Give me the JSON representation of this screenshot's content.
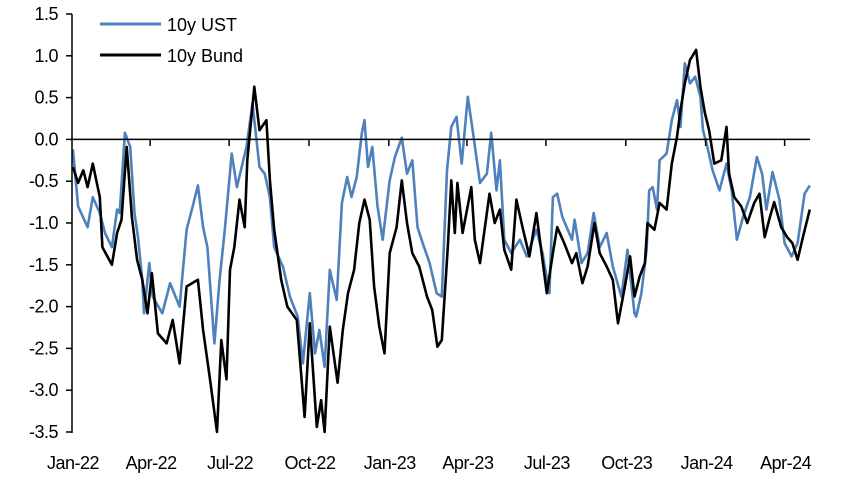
{
  "chart_data": {
    "type": "line",
    "title": "",
    "xlabel": "",
    "ylabel": "",
    "ylim": [
      -3.5,
      1.5
    ],
    "y_ticks": [
      "1.5",
      "1.0",
      "0.5",
      "0.0",
      "-0.5",
      "-1.0",
      "-1.5",
      "-2.0",
      "-2.5",
      "-3.0",
      "-3.5"
    ],
    "x_tick_labels": [
      "Jan-22",
      "Apr-22",
      "Jul-22",
      "Oct-22",
      "Jan-23",
      "Apr-23",
      "Jul-23",
      "Oct-23",
      "Jan-24",
      "Apr-24"
    ],
    "x_tick_dates": [
      "2022-01-01",
      "2022-04-01",
      "2022-07-01",
      "2022-10-01",
      "2023-01-01",
      "2023-04-01",
      "2023-07-01",
      "2023-10-01",
      "2024-01-01",
      "2024-04-01"
    ],
    "xlim": [
      "2022-01-01",
      "2024-05-20"
    ],
    "grid": false,
    "legend_position": "top-left",
    "series": [
      {
        "name": "10y UST",
        "color": "#4F81BD",
        "points": [
          [
            "2022-01-02",
            -0.12
          ],
          [
            "2022-01-08",
            -0.8
          ],
          [
            "2022-01-19",
            -1.05
          ],
          [
            "2022-01-25",
            -0.69
          ],
          [
            "2022-02-02",
            -0.88
          ],
          [
            "2022-02-08",
            -1.12
          ],
          [
            "2022-02-16",
            -1.29
          ],
          [
            "2022-02-22",
            -0.84
          ],
          [
            "2022-02-25",
            -0.88
          ],
          [
            "2022-03-03",
            0.08
          ],
          [
            "2022-03-09",
            -0.09
          ],
          [
            "2022-03-14",
            -0.88
          ],
          [
            "2022-03-18",
            -1.17
          ],
          [
            "2022-03-23",
            -1.68
          ],
          [
            "2022-03-25",
            -2.08
          ],
          [
            "2022-03-31",
            -1.48
          ],
          [
            "2022-04-04",
            -1.88
          ],
          [
            "2022-04-15",
            -2.08
          ],
          [
            "2022-04-24",
            -1.72
          ],
          [
            "2022-05-05",
            -2.0
          ],
          [
            "2022-05-13",
            -1.08
          ],
          [
            "2022-05-20",
            -0.8
          ],
          [
            "2022-05-26",
            -0.55
          ],
          [
            "2022-06-01",
            -1.05
          ],
          [
            "2022-06-06",
            -1.29
          ],
          [
            "2022-06-14",
            -2.44
          ],
          [
            "2022-06-20",
            -1.68
          ],
          [
            "2022-06-26",
            -1.08
          ],
          [
            "2022-07-04",
            -0.17
          ],
          [
            "2022-07-10",
            -0.57
          ],
          [
            "2022-07-21",
            -0.09
          ],
          [
            "2022-07-28",
            0.43
          ],
          [
            "2022-08-05",
            -0.33
          ],
          [
            "2022-08-11",
            -0.41
          ],
          [
            "2022-08-17",
            -0.69
          ],
          [
            "2022-08-22",
            -1.29
          ],
          [
            "2022-09-01",
            -1.52
          ],
          [
            "2022-09-09",
            -1.88
          ],
          [
            "2022-09-18",
            -2.12
          ],
          [
            "2022-09-24",
            -2.68
          ],
          [
            "2022-10-02",
            -1.84
          ],
          [
            "2022-10-08",
            -2.56
          ],
          [
            "2022-10-13",
            -2.28
          ],
          [
            "2022-10-19",
            -2.72
          ],
          [
            "2022-10-25",
            -1.56
          ],
          [
            "2022-11-02",
            -1.92
          ],
          [
            "2022-11-08",
            -0.76
          ],
          [
            "2022-11-14",
            -0.45
          ],
          [
            "2022-11-19",
            -0.69
          ],
          [
            "2022-11-25",
            -0.45
          ],
          [
            "2022-12-01",
            0.08
          ],
          [
            "2022-12-04",
            0.23
          ],
          [
            "2022-12-08",
            -0.33
          ],
          [
            "2022-12-13",
            -0.09
          ],
          [
            "2022-12-19",
            -0.8
          ],
          [
            "2022-12-25",
            -1.2
          ],
          [
            "2023-01-02",
            -0.49
          ],
          [
            "2023-01-08",
            -0.21
          ],
          [
            "2023-01-16",
            0.02
          ],
          [
            "2023-01-22",
            -0.41
          ],
          [
            "2023-01-28",
            -0.25
          ],
          [
            "2023-02-03",
            -1.05
          ],
          [
            "2023-02-09",
            -1.24
          ],
          [
            "2023-02-17",
            -1.48
          ],
          [
            "2023-02-25",
            -1.84
          ],
          [
            "2023-03-03",
            -1.88
          ],
          [
            "2023-03-09",
            -0.37
          ],
          [
            "2023-03-14",
            0.15
          ],
          [
            "2023-03-20",
            0.27
          ],
          [
            "2023-03-26",
            -0.29
          ],
          [
            "2023-04-02",
            0.51
          ],
          [
            "2023-04-08",
            0.08
          ],
          [
            "2023-04-16",
            -0.52
          ],
          [
            "2023-04-24",
            -0.41
          ],
          [
            "2023-04-29",
            0.08
          ],
          [
            "2023-05-05",
            -0.61
          ],
          [
            "2023-05-09",
            -0.25
          ],
          [
            "2023-05-14",
            -1.2
          ],
          [
            "2023-05-22",
            -1.36
          ],
          [
            "2023-06-01",
            -1.2
          ],
          [
            "2023-06-09",
            -1.4
          ],
          [
            "2023-06-20",
            -1.08
          ],
          [
            "2023-06-27",
            -1.36
          ],
          [
            "2023-07-05",
            -1.84
          ],
          [
            "2023-07-09",
            -0.69
          ],
          [
            "2023-07-14",
            -0.65
          ],
          [
            "2023-07-20",
            -0.93
          ],
          [
            "2023-07-31",
            -1.2
          ],
          [
            "2023-08-03",
            -0.96
          ],
          [
            "2023-08-11",
            -1.48
          ],
          [
            "2023-08-18",
            -1.36
          ],
          [
            "2023-08-25",
            -0.88
          ],
          [
            "2023-09-01",
            -1.29
          ],
          [
            "2023-09-09",
            -1.12
          ],
          [
            "2023-09-16",
            -1.52
          ],
          [
            "2023-09-26",
            -1.88
          ],
          [
            "2023-10-03",
            -1.32
          ],
          [
            "2023-10-11",
            -2.08
          ],
          [
            "2023-10-13",
            -2.12
          ],
          [
            "2023-10-19",
            -1.84
          ],
          [
            "2023-10-25",
            -1.32
          ],
          [
            "2023-10-28",
            -0.61
          ],
          [
            "2023-11-01",
            -0.57
          ],
          [
            "2023-11-06",
            -0.84
          ],
          [
            "2023-11-09",
            -0.25
          ],
          [
            "2023-11-17",
            -0.17
          ],
          [
            "2023-11-23",
            0.23
          ],
          [
            "2023-11-29",
            0.47
          ],
          [
            "2023-12-03",
            0.15
          ],
          [
            "2023-12-08",
            0.91
          ],
          [
            "2023-12-14",
            0.67
          ],
          [
            "2023-12-20",
            0.75
          ],
          [
            "2023-12-26",
            0.51
          ],
          [
            "2023-12-29",
            0.11
          ],
          [
            "2024-01-03",
            -0.09
          ],
          [
            "2024-01-09",
            -0.37
          ],
          [
            "2024-01-17",
            -0.61
          ],
          [
            "2024-01-25",
            -0.29
          ],
          [
            "2024-01-31",
            -0.61
          ],
          [
            "2024-02-06",
            -1.2
          ],
          [
            "2024-02-13",
            -0.93
          ],
          [
            "2024-02-21",
            -0.69
          ],
          [
            "2024-02-29",
            -0.21
          ],
          [
            "2024-03-06",
            -0.41
          ],
          [
            "2024-03-11",
            -0.84
          ],
          [
            "2024-03-18",
            -0.39
          ],
          [
            "2024-03-26",
            -0.72
          ],
          [
            "2024-04-01",
            -1.24
          ],
          [
            "2024-04-09",
            -1.4
          ],
          [
            "2024-04-16",
            -1.24
          ],
          [
            "2024-04-24",
            -0.65
          ],
          [
            "2024-04-30",
            -0.55
          ]
        ]
      },
      {
        "name": "10y Bund",
        "color": "#000000",
        "points": [
          [
            "2022-01-02",
            -0.33
          ],
          [
            "2022-01-08",
            -0.52
          ],
          [
            "2022-01-14",
            -0.37
          ],
          [
            "2022-01-19",
            -0.57
          ],
          [
            "2022-01-25",
            -0.29
          ],
          [
            "2022-02-02",
            -0.69
          ],
          [
            "2022-02-05",
            -1.29
          ],
          [
            "2022-02-16",
            -1.5
          ],
          [
            "2022-02-22",
            -1.12
          ],
          [
            "2022-02-27",
            -0.96
          ],
          [
            "2022-03-05",
            -0.09
          ],
          [
            "2022-03-11",
            -0.93
          ],
          [
            "2022-03-17",
            -1.44
          ],
          [
            "2022-03-23",
            -1.68
          ],
          [
            "2022-03-29",
            -2.08
          ],
          [
            "2022-04-03",
            -1.6
          ],
          [
            "2022-04-10",
            -2.32
          ],
          [
            "2022-04-20",
            -2.44
          ],
          [
            "2022-04-27",
            -2.16
          ],
          [
            "2022-05-05",
            -2.68
          ],
          [
            "2022-05-13",
            -1.76
          ],
          [
            "2022-05-26",
            -1.68
          ],
          [
            "2022-06-01",
            -2.28
          ],
          [
            "2022-06-09",
            -2.87
          ],
          [
            "2022-06-17",
            -3.5
          ],
          [
            "2022-06-22",
            -2.4
          ],
          [
            "2022-06-28",
            -2.87
          ],
          [
            "2022-07-02",
            -1.56
          ],
          [
            "2022-07-07",
            -1.29
          ],
          [
            "2022-07-13",
            -0.72
          ],
          [
            "2022-07-19",
            -1.05
          ],
          [
            "2022-07-22",
            -0.25
          ],
          [
            "2022-07-30",
            0.63
          ],
          [
            "2022-08-05",
            0.11
          ],
          [
            "2022-08-13",
            0.23
          ],
          [
            "2022-08-17",
            -0.49
          ],
          [
            "2022-08-22",
            -1.08
          ],
          [
            "2022-08-30",
            -1.68
          ],
          [
            "2022-09-06",
            -2.0
          ],
          [
            "2022-09-17",
            -2.16
          ],
          [
            "2022-09-26",
            -3.32
          ],
          [
            "2022-10-02",
            -2.2
          ],
          [
            "2022-10-10",
            -3.44
          ],
          [
            "2022-10-15",
            -3.12
          ],
          [
            "2022-10-19",
            -3.5
          ],
          [
            "2022-10-25",
            -2.24
          ],
          [
            "2022-11-03",
            -2.91
          ],
          [
            "2022-11-09",
            -2.28
          ],
          [
            "2022-11-15",
            -1.84
          ],
          [
            "2022-11-22",
            -1.56
          ],
          [
            "2022-11-28",
            -1.0
          ],
          [
            "2022-12-04",
            -0.72
          ],
          [
            "2022-12-10",
            -0.96
          ],
          [
            "2022-12-15",
            -1.76
          ],
          [
            "2022-12-21",
            -2.24
          ],
          [
            "2022-12-27",
            -2.56
          ],
          [
            "2023-01-02",
            -1.36
          ],
          [
            "2023-01-10",
            -1.05
          ],
          [
            "2023-01-16",
            -0.49
          ],
          [
            "2023-01-22",
            -1.0
          ],
          [
            "2023-01-28",
            -1.36
          ],
          [
            "2023-02-05",
            -1.52
          ],
          [
            "2023-02-14",
            -1.88
          ],
          [
            "2023-02-20",
            -2.04
          ],
          [
            "2023-02-26",
            -2.48
          ],
          [
            "2023-03-03",
            -2.4
          ],
          [
            "2023-03-10",
            -1.29
          ],
          [
            "2023-03-14",
            -0.49
          ],
          [
            "2023-03-18",
            -1.12
          ],
          [
            "2023-03-21",
            -0.52
          ],
          [
            "2023-03-27",
            -1.12
          ],
          [
            "2023-04-06",
            -0.57
          ],
          [
            "2023-04-10",
            -1.2
          ],
          [
            "2023-04-16",
            -1.48
          ],
          [
            "2023-04-27",
            -0.65
          ],
          [
            "2023-05-03",
            -1.0
          ],
          [
            "2023-05-09",
            -0.84
          ],
          [
            "2023-05-14",
            -1.32
          ],
          [
            "2023-05-22",
            -1.56
          ],
          [
            "2023-05-28",
            -0.72
          ],
          [
            "2023-06-04",
            -1.05
          ],
          [
            "2023-06-12",
            -1.4
          ],
          [
            "2023-06-20",
            -0.88
          ],
          [
            "2023-06-26",
            -1.36
          ],
          [
            "2023-07-02",
            -1.84
          ],
          [
            "2023-07-09",
            -1.36
          ],
          [
            "2023-07-14",
            -1.05
          ],
          [
            "2023-07-22",
            -1.24
          ],
          [
            "2023-07-31",
            -1.48
          ],
          [
            "2023-08-05",
            -1.36
          ],
          [
            "2023-08-12",
            -1.72
          ],
          [
            "2023-08-18",
            -1.52
          ],
          [
            "2023-08-26",
            -1.0
          ],
          [
            "2023-09-01",
            -1.36
          ],
          [
            "2023-09-09",
            -1.52
          ],
          [
            "2023-09-16",
            -1.68
          ],
          [
            "2023-09-22",
            -2.2
          ],
          [
            "2023-09-30",
            -1.76
          ],
          [
            "2023-10-06",
            -1.4
          ],
          [
            "2023-10-11",
            -1.88
          ],
          [
            "2023-10-17",
            -1.64
          ],
          [
            "2023-10-23",
            -1.48
          ],
          [
            "2023-10-26",
            -1.0
          ],
          [
            "2023-11-03",
            -1.08
          ],
          [
            "2023-11-09",
            -0.76
          ],
          [
            "2023-11-17",
            -0.84
          ],
          [
            "2023-11-23",
            -0.29
          ],
          [
            "2023-11-29",
            0.03
          ],
          [
            "2023-12-03",
            0.35
          ],
          [
            "2023-12-08",
            0.67
          ],
          [
            "2023-12-14",
            0.95
          ],
          [
            "2023-12-21",
            1.07
          ],
          [
            "2023-12-26",
            0.63
          ],
          [
            "2023-12-31",
            0.32
          ],
          [
            "2024-01-05",
            0.11
          ],
          [
            "2024-01-11",
            -0.29
          ],
          [
            "2024-01-19",
            -0.25
          ],
          [
            "2024-01-25",
            0.15
          ],
          [
            "2024-01-28",
            -0.41
          ],
          [
            "2024-02-03",
            -0.69
          ],
          [
            "2024-02-11",
            -0.8
          ],
          [
            "2024-02-18",
            -1.0
          ],
          [
            "2024-02-26",
            -0.76
          ],
          [
            "2024-03-03",
            -0.65
          ],
          [
            "2024-03-09",
            -1.17
          ],
          [
            "2024-03-15",
            -0.93
          ],
          [
            "2024-03-20",
            -0.75
          ],
          [
            "2024-03-28",
            -1.05
          ],
          [
            "2024-04-04",
            -1.17
          ],
          [
            "2024-04-10",
            -1.24
          ],
          [
            "2024-04-16",
            -1.44
          ],
          [
            "2024-04-22",
            -1.17
          ],
          [
            "2024-04-30",
            -0.84
          ]
        ]
      }
    ]
  }
}
